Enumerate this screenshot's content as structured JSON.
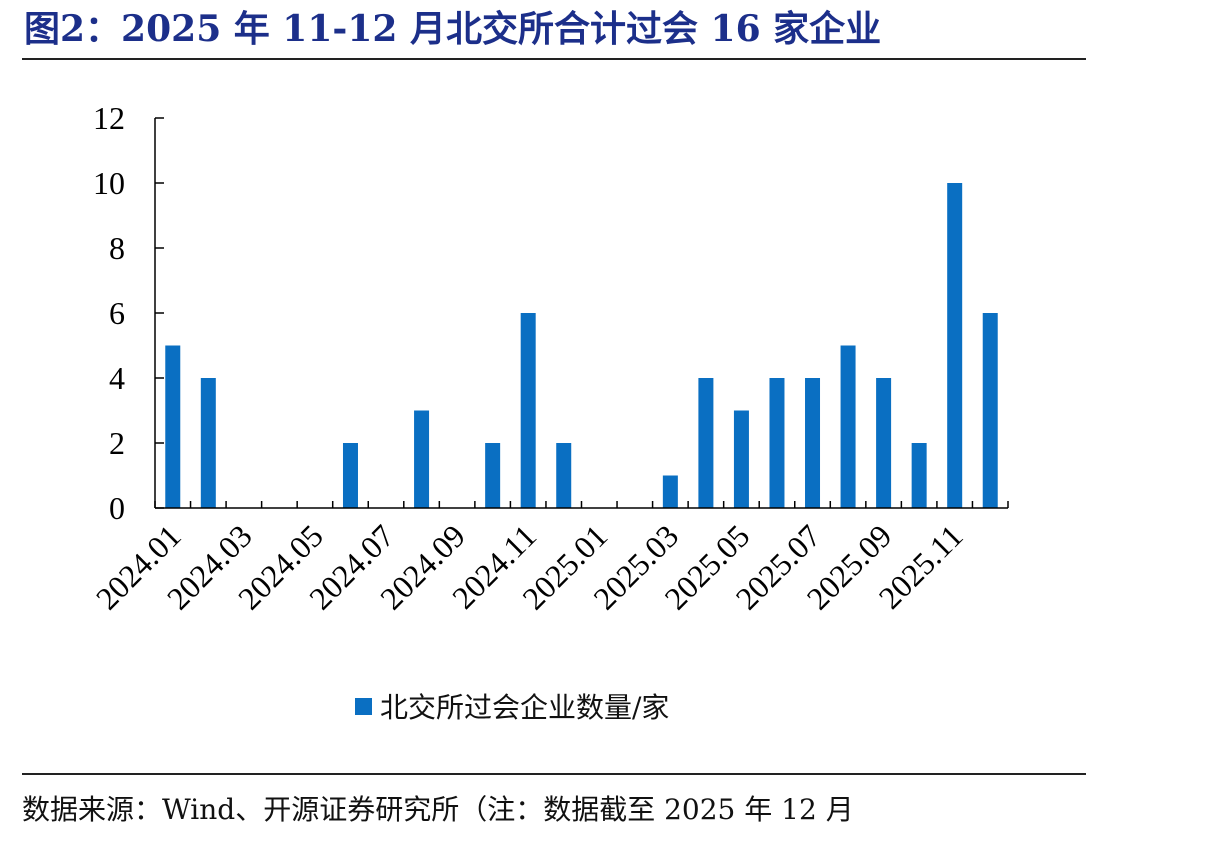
{
  "title": "图2：2025 年 11-12 月北交所合计过会 16 家企业",
  "source": "数据来源：Wind、开源证券研究所（注：数据截至 2025 年 12 月",
  "colors": {
    "bar": "#0a6fc2",
    "title": "#1c2f8a"
  },
  "chart_data": {
    "type": "bar",
    "categories": [
      "2024.01",
      "2024.02",
      "2024.03",
      "2024.04",
      "2024.05",
      "2024.06",
      "2024.07",
      "2024.08",
      "2024.09",
      "2024.10",
      "2024.11",
      "2024.12",
      "2025.01",
      "2025.02",
      "2025.03",
      "2025.04",
      "2025.05",
      "2025.06",
      "2025.07",
      "2025.08",
      "2025.09",
      "2025.10",
      "2025.11",
      "2025.12"
    ],
    "tick_labels": [
      "2024.01",
      "2024.03",
      "2024.05",
      "2024.07",
      "2024.09",
      "2024.11",
      "2025.01",
      "2025.03",
      "2025.05",
      "2025.07",
      "2025.09",
      "2025.11"
    ],
    "series": [
      {
        "name": "北交所过会企业数量/家",
        "values": [
          5,
          4,
          0,
          0,
          0,
          2,
          0,
          3,
          0,
          2,
          6,
          2,
          0,
          0,
          1,
          4,
          3,
          4,
          4,
          5,
          4,
          2,
          10,
          6
        ]
      }
    ],
    "ylim": [
      0,
      12
    ],
    "yticks": [
      0,
      2,
      4,
      6,
      8,
      10,
      12
    ],
    "grid": false,
    "legend": "bottom-center"
  }
}
